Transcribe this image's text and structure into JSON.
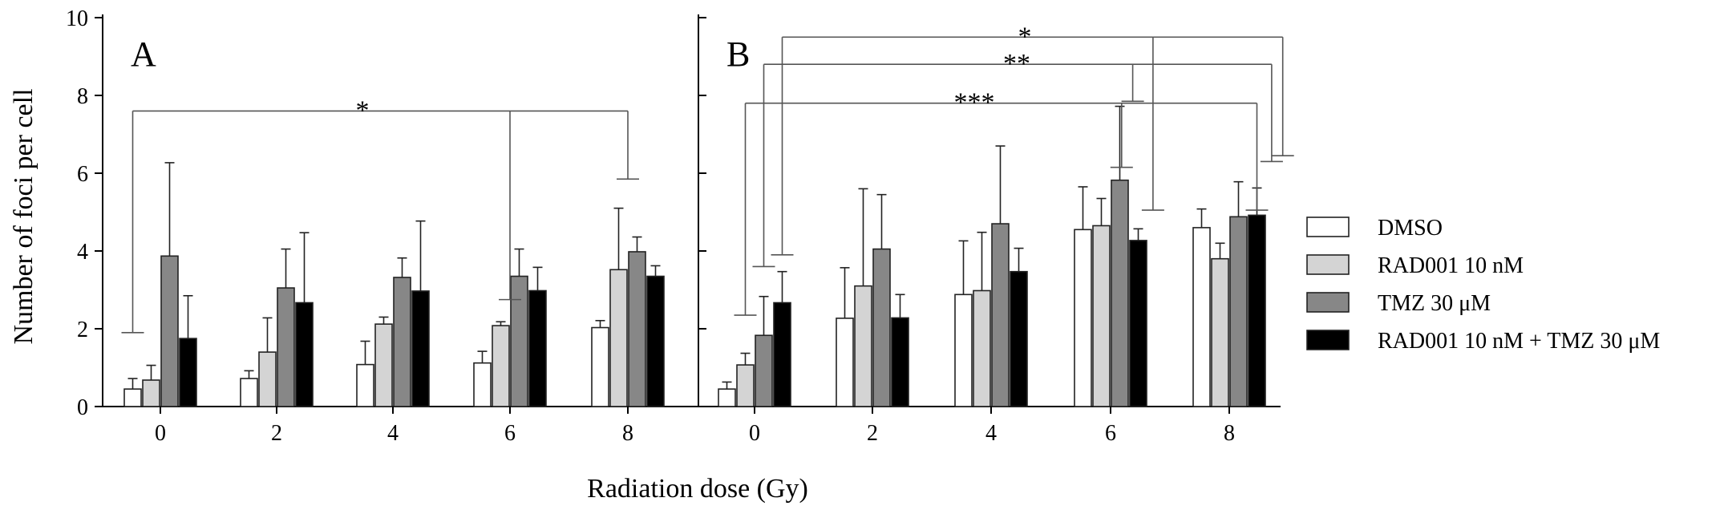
{
  "chart_data": {
    "type": "bar",
    "ylabel": "Number of foci per cell",
    "xlabel": "Radiation dose (Gy)",
    "ylim": [
      0,
      10
    ],
    "y_ticks": [
      "0",
      "2",
      "4",
      "6",
      "8",
      "10"
    ],
    "categories": [
      "0",
      "2",
      "4",
      "6",
      "8"
    ],
    "legend": {
      "position": "right",
      "entries": [
        {
          "label": "DMSO",
          "color": "#ffffff"
        },
        {
          "label": "RAD001 10 nM",
          "color": "#d4d4d4"
        },
        {
          "label": "TMZ 30 μM",
          "color": "#878787"
        },
        {
          "label": "RAD001 10 nM + TMZ 30 μM",
          "color": "#000000"
        }
      ]
    },
    "panels": [
      {
        "label": "A",
        "series": [
          {
            "values": [
              0.45,
              0.72,
              1.08,
              1.12,
              2.03
            ],
            "errors": [
              0.27,
              0.2,
              0.6,
              0.3,
              0.18
            ]
          },
          {
            "values": [
              0.68,
              1.4,
              2.12,
              2.08,
              3.52
            ],
            "errors": [
              0.38,
              0.88,
              0.18,
              0.1,
              1.58
            ]
          },
          {
            "values": [
              3.87,
              3.05,
              3.32,
              3.35,
              3.98
            ],
            "errors": [
              2.4,
              1.0,
              0.5,
              0.7,
              0.38
            ]
          },
          {
            "values": [
              1.75,
              2.67,
              2.97,
              2.98,
              3.35
            ],
            "errors": [
              1.1,
              1.8,
              1.8,
              0.6,
              0.27
            ]
          }
        ],
        "annotations": [
          {
            "text": "*",
            "from_category": 0,
            "to_categories": [
              3,
              4
            ]
          }
        ]
      },
      {
        "label": "B",
        "series": [
          {
            "values": [
              0.45,
              2.27,
              2.88,
              4.55,
              4.6
            ],
            "errors": [
              0.18,
              1.3,
              1.38,
              1.1,
              0.48
            ]
          },
          {
            "values": [
              1.07,
              3.1,
              2.98,
              4.65,
              3.8
            ],
            "errors": [
              0.3,
              2.5,
              1.5,
              0.7,
              0.4
            ]
          },
          {
            "values": [
              1.83,
              4.05,
              4.7,
              5.82,
              4.88
            ],
            "errors": [
              1.0,
              1.4,
              2.0,
              1.9,
              0.9
            ]
          },
          {
            "values": [
              2.67,
              2.28,
              3.47,
              4.27,
              4.92
            ],
            "errors": [
              0.8,
              0.6,
              0.6,
              0.3,
              0.7
            ]
          }
        ],
        "annotations": [
          {
            "text": "***",
            "from_category": 0,
            "to_categories": [
              3,
              4
            ]
          },
          {
            "text": "**",
            "from_category": 0,
            "to_categories": [
              3,
              4
            ]
          },
          {
            "text": "*",
            "from_category": 0,
            "to_categories": [
              3,
              4
            ]
          }
        ]
      }
    ]
  }
}
